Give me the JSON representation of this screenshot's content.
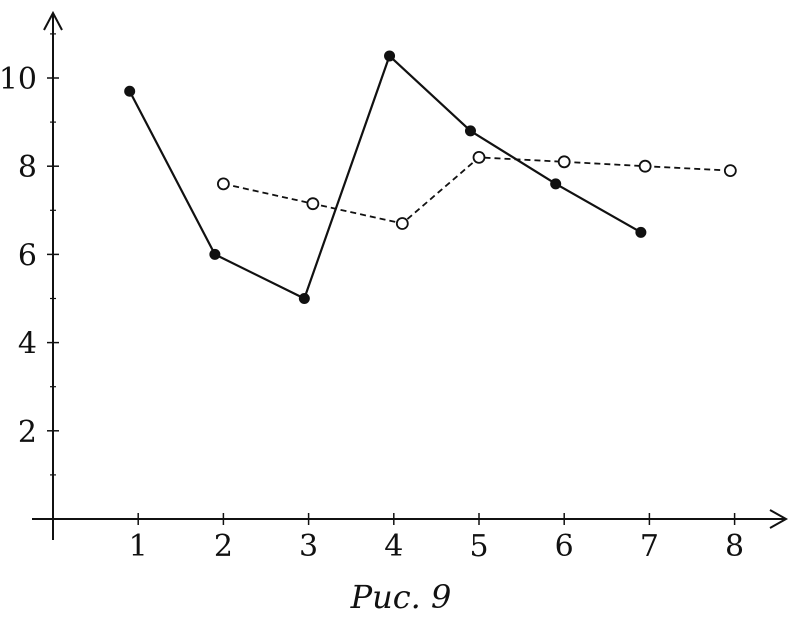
{
  "caption": "Рис. 9",
  "chart_data": {
    "type": "line",
    "title": "",
    "xlabel": "",
    "ylabel": "",
    "xlim": [
      0,
      8.5
    ],
    "ylim": [
      0,
      11
    ],
    "x_ticks": [
      1,
      2,
      3,
      4,
      5,
      6,
      7,
      8
    ],
    "y_ticks": [
      2,
      4,
      6,
      8,
      10
    ],
    "grid": false,
    "legend": "none",
    "series": [
      {
        "style": "solid",
        "marker": "filled-circle",
        "color": "#111111",
        "x": [
          0.9,
          1.9,
          2.95,
          3.95,
          4.9,
          5.9,
          6.9
        ],
        "y": [
          9.7,
          6.0,
          5.0,
          10.5,
          8.8,
          7.6,
          6.5
        ]
      },
      {
        "style": "dashed",
        "marker": "open-circle",
        "color": "#111111",
        "x": [
          2.0,
          3.05,
          4.1,
          5.0,
          6.0,
          6.95,
          7.95
        ],
        "y": [
          7.6,
          7.15,
          6.7,
          8.2,
          8.1,
          8.0,
          7.9
        ]
      }
    ]
  }
}
